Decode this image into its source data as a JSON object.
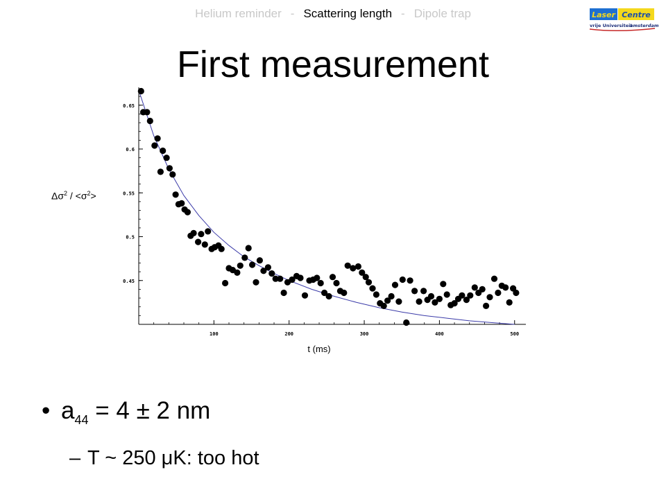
{
  "nav": {
    "items": [
      {
        "label": "Helium reminder",
        "active": false
      },
      {
        "label": "Scattering length",
        "active": true
      },
      {
        "label": "Dipole trap",
        "active": false
      }
    ],
    "separator": "-"
  },
  "logo": {
    "word1": "Laser",
    "word2": "Centre",
    "sub1": "vrije Universiteit",
    "sub2": "amsterdam"
  },
  "title": "First measurement",
  "chart_data": {
    "type": "scatter",
    "title": "",
    "xlabel": "t (ms)",
    "ylabel": "Δσ² / <σ²>",
    "x_ticks": [
      100,
      200,
      300,
      400,
      500
    ],
    "y_ticks": [
      0.45,
      0.5,
      0.55,
      0.6,
      0.65
    ],
    "y_tick_labels": [
      "0.45",
      "0.5",
      "0.55",
      "0.6",
      "0.65"
    ],
    "xlim": [
      0,
      515
    ],
    "ylim": [
      0.4,
      0.668
    ],
    "grid": false,
    "series": [
      {
        "kind": "points",
        "x": [
          3,
          6,
          11,
          15,
          21,
          25,
          29,
          32,
          37,
          41,
          45,
          49,
          53,
          57,
          61,
          65,
          69,
          73,
          79,
          83,
          88,
          92,
          97,
          101,
          106,
          110,
          115,
          120,
          125,
          131,
          135,
          141,
          146,
          151,
          156,
          161,
          166,
          172,
          177,
          182,
          188,
          193,
          198,
          204,
          210,
          215,
          221,
          227,
          232,
          237,
          242,
          247,
          253,
          258,
          263,
          268,
          273,
          278,
          285,
          292,
          297,
          302,
          306,
          311,
          316,
          321,
          326,
          331,
          336,
          341,
          346,
          351,
          356,
          361,
          367,
          373,
          379,
          384,
          389,
          394,
          400,
          405,
          410,
          415,
          420,
          425,
          430,
          436,
          441,
          447,
          452,
          457,
          462,
          467,
          473,
          478,
          483,
          488,
          493,
          498,
          502
        ],
        "y": [
          0.666,
          0.642,
          0.642,
          0.632,
          0.604,
          0.612,
          0.574,
          0.598,
          0.59,
          0.578,
          0.571,
          0.548,
          0.537,
          0.538,
          0.531,
          0.528,
          0.501,
          0.504,
          0.494,
          0.503,
          0.491,
          0.506,
          0.486,
          0.488,
          0.49,
          0.486,
          0.447,
          0.464,
          0.462,
          0.459,
          0.467,
          0.476,
          0.487,
          0.468,
          0.448,
          0.473,
          0.461,
          0.465,
          0.458,
          0.452,
          0.452,
          0.436,
          0.448,
          0.451,
          0.455,
          0.453,
          0.433,
          0.45,
          0.451,
          0.453,
          0.447,
          0.436,
          0.432,
          0.454,
          0.447,
          0.438,
          0.436,
          0.467,
          0.464,
          0.466,
          0.459,
          0.454,
          0.448,
          0.441,
          0.434,
          0.424,
          0.421,
          0.427,
          0.432,
          0.445,
          0.426,
          0.451,
          0.402,
          0.45,
          0.438,
          0.426,
          0.438,
          0.428,
          0.432,
          0.425,
          0.429,
          0.446,
          0.434,
          0.422,
          0.424,
          0.429,
          0.433,
          0.428,
          0.433,
          0.442,
          0.436,
          0.44,
          0.421,
          0.431,
          0.452,
          0.436,
          0.444,
          0.442,
          0.425,
          0.441,
          0.436
        ]
      },
      {
        "kind": "fit",
        "x": [
          0,
          20,
          40,
          60,
          80,
          100,
          120,
          140,
          160,
          180,
          200,
          230,
          260,
          290,
          320,
          350,
          380,
          410,
          440,
          470,
          500
        ],
        "y": [
          0.667,
          0.615,
          0.577,
          0.547,
          0.524,
          0.505,
          0.49,
          0.477,
          0.467,
          0.458,
          0.45,
          0.44,
          0.432,
          0.425,
          0.419,
          0.414,
          0.41,
          0.407,
          0.404,
          0.402,
          0.4
        ],
        "color": "#3a3aa8"
      }
    ]
  },
  "bullets": [
    {
      "sym": "a",
      "sub": "44",
      "rest": " = 4 ± 2 nm"
    },
    {
      "text": "T ~ 250 μK: too hot"
    }
  ]
}
